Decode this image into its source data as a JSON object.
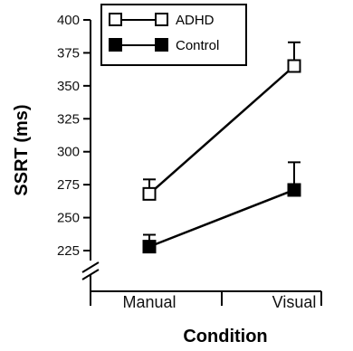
{
  "chart_data": {
    "type": "line",
    "title": "",
    "xlabel": "Condition",
    "ylabel": "SSRT (ms)",
    "categories": [
      "Manual",
      "Visual"
    ],
    "ylim": [
      200,
      400
    ],
    "yticks": [
      225,
      250,
      275,
      300,
      325,
      350,
      375,
      400
    ],
    "tick_labels": [
      "225",
      "250",
      "275",
      "300",
      "325",
      "350",
      "375",
      "400"
    ],
    "axis_break": true,
    "grid": false,
    "legend_position": "top-left",
    "series": [
      {
        "name": "ADHD",
        "marker": "open-square",
        "values": [
          268,
          365
        ],
        "error_plus": [
          11,
          18
        ]
      },
      {
        "name": "Control",
        "marker": "filled-square",
        "values": [
          228,
          271
        ],
        "error_plus": [
          9,
          21
        ]
      }
    ]
  }
}
